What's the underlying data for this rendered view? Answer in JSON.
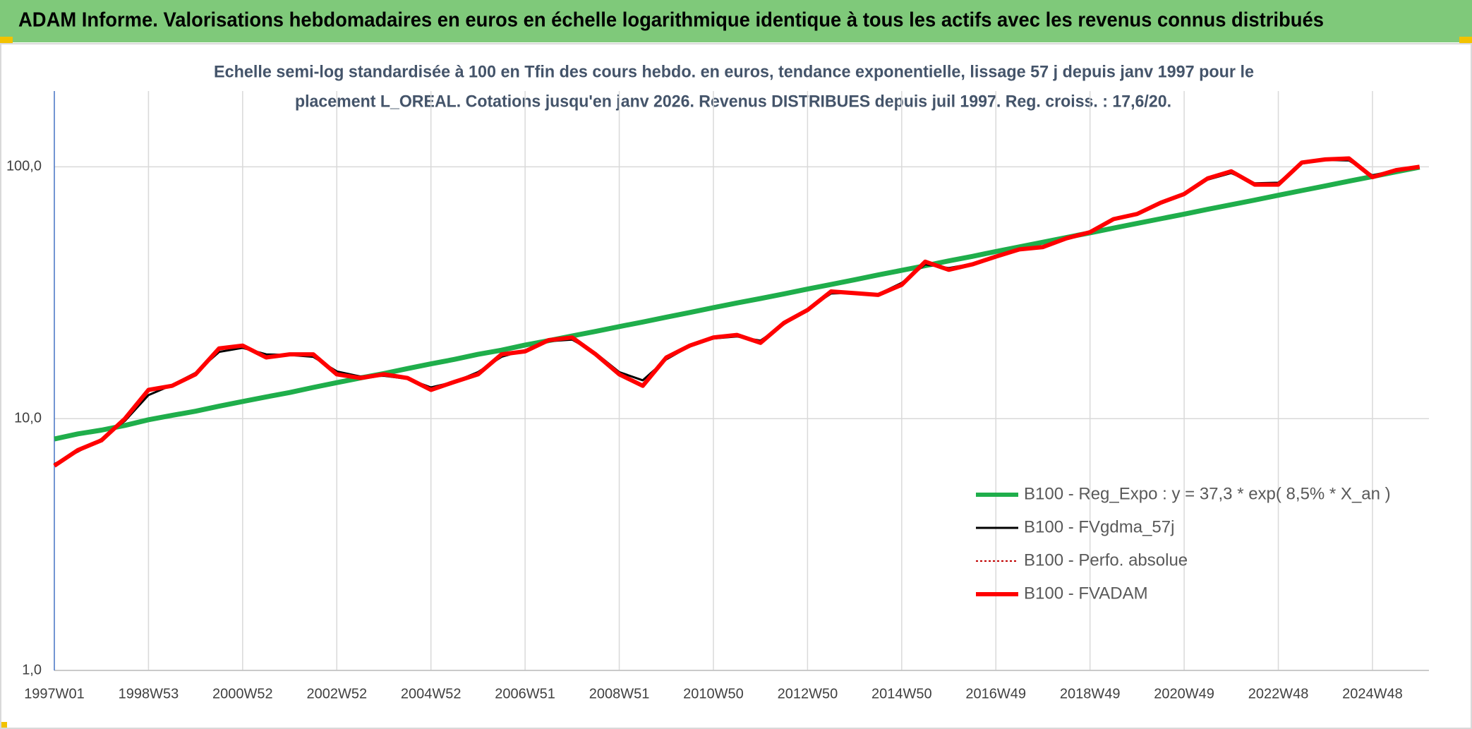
{
  "header": {
    "title": "ADAM Informe. Valorisations hebdomadaires en euros en échelle logarithmique identique à tous les actifs avec les revenus connus distribués"
  },
  "chart_data": {
    "type": "line",
    "subtitle": [
      "Echelle semi-log standardisée à 100 en Tfin des cours hebdo. en euros, tendance exponentielle, lissage 57 j depuis janv 1997 pour le",
      "placement L_OREAL. Cotations jusqu'en janv 2026. Revenus DISTRIBUES depuis juil 1997. Reg. croiss. : 17,6/20."
    ],
    "log_scale": true,
    "grid": true,
    "legend": "bottom-right",
    "ylim": [
      1,
      200
    ],
    "yticks": [
      {
        "value": 1,
        "label": "1,0"
      },
      {
        "value": 10,
        "label": "10,0"
      },
      {
        "value": 100,
        "label": "100,0"
      }
    ],
    "categories": [
      "1997W01",
      null,
      null,
      null,
      "1998W53",
      null,
      null,
      null,
      "2000W52",
      null,
      null,
      null,
      "2002W52",
      null,
      null,
      null,
      "2004W52",
      null,
      null,
      null,
      "2006W51",
      null,
      null,
      null,
      "2008W51",
      null,
      null,
      null,
      "2010W50",
      null,
      null,
      null,
      "2012W50",
      null,
      null,
      null,
      "2014W50",
      null,
      null,
      null,
      "2016W49",
      null,
      null,
      null,
      "2018W49",
      null,
      null,
      null,
      "2020W49",
      null,
      null,
      null,
      "2022W48",
      null,
      null,
      null,
      "2024W48",
      null,
      null
    ],
    "series": [
      {
        "name": "B100 - Reg_Expo : y = 37,3 * exp( 8,5% *  X_an )",
        "color": "#1fae4b",
        "width": 7,
        "style": "solid",
        "values": [
          8.3,
          8.7,
          9.0,
          9.4,
          9.9,
          10.3,
          10.7,
          11.2,
          11.7,
          12.2,
          12.7,
          13.3,
          13.9,
          14.5,
          15.1,
          15.8,
          16.5,
          17.2,
          18.0,
          18.7,
          19.6,
          20.4,
          21.3,
          22.2,
          23.2,
          24.2,
          25.3,
          26.4,
          27.6,
          28.8,
          30.0,
          31.3,
          32.7,
          34.1,
          35.6,
          37.2,
          38.8,
          40.5,
          42.3,
          44.1,
          46.1,
          48.1,
          50.2,
          52.4,
          54.7,
          57.1,
          59.6,
          62.2,
          64.9,
          67.8,
          70.7,
          73.8,
          77.1,
          80.5,
          84.0,
          87.7,
          91.5,
          95.5,
          99.7
        ]
      },
      {
        "name": "B100 - FVgdma_57j",
        "color": "#000000",
        "width": 3,
        "style": "solid",
        "values": [
          6.6,
          7.4,
          8.3,
          9.8,
          12.4,
          13.6,
          15.2,
          18.4,
          19.1,
          18,
          17.9,
          17.6,
          15.4,
          14.7,
          14.8,
          14.4,
          13.3,
          14,
          15.3,
          17.6,
          18.7,
          20.3,
          20.6,
          18.2,
          15.3,
          14.2,
          17.2,
          19.4,
          20.8,
          21.2,
          20.4,
          23.7,
          27.2,
          31.4,
          31.6,
          31.2,
          34.6,
          41,
          39.6,
          41.2,
          44.2,
          46.6,
          48.3,
          51.6,
          55.4,
          61.5,
          65.3,
          71.6,
          78.6,
          89,
          94.5,
          86,
          86.5,
          103,
          106.5,
          106,
          92.5,
          96.5,
          99.5
        ]
      },
      {
        "name": "B100 - Perfo. absolue",
        "color": "#c00000",
        "width": 2,
        "style": "dotted",
        "values": [
          6.5,
          7.5,
          8.2,
          10,
          13,
          13.5,
          15,
          19,
          19.5,
          17.5,
          18,
          18,
          15,
          14.5,
          15,
          14.5,
          13,
          14,
          15,
          18,
          18.5,
          20.5,
          21,
          18,
          15,
          13.5,
          17.5,
          19.5,
          21,
          21.5,
          20,
          24,
          27,
          32,
          31.5,
          31,
          34,
          42,
          39,
          41,
          44,
          47,
          48,
          52,
          55,
          62,
          65,
          72,
          78,
          90,
          96,
          85,
          85,
          104,
          107,
          108,
          91,
          97,
          100
        ]
      },
      {
        "name": "B100 - FVADAM",
        "color": "#ff0000",
        "width": 6,
        "style": "solid",
        "values": [
          6.5,
          7.5,
          8.2,
          10,
          13,
          13.5,
          15,
          19,
          19.5,
          17.5,
          18,
          18,
          15,
          14.5,
          15,
          14.5,
          13,
          14,
          15,
          18,
          18.5,
          20.5,
          21,
          18,
          15,
          13.5,
          17.5,
          19.5,
          21,
          21.5,
          20,
          24,
          27,
          32,
          31.5,
          31,
          34,
          42,
          39,
          41,
          44,
          47,
          48,
          52,
          55,
          62,
          65,
          72,
          78,
          90,
          96,
          85,
          85,
          104,
          107,
          108,
          91,
          97,
          100
        ]
      }
    ]
  }
}
